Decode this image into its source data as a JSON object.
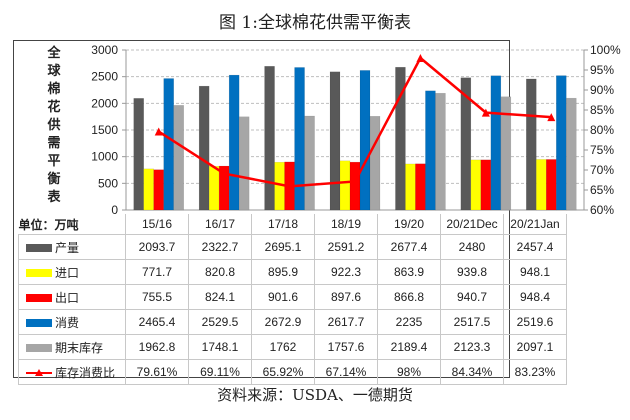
{
  "page": {
    "title": "图 1:全球棉花供需平衡表",
    "source": "资料来源：USDA、一德期货",
    "vertical_title": [
      "全",
      "球",
      "棉",
      "花",
      "供",
      "需",
      "平",
      "衡",
      "表"
    ],
    "unit_label": "单位：万吨"
  },
  "colors": {
    "production": "#595959",
    "imports": "#ffff00",
    "exports": "#ff0000",
    "consumption": "#0070c0",
    "ending_stocks": "#a6a6a6",
    "stock_ratio": "#ff0000"
  },
  "chart_data": {
    "type": "bar",
    "title": "图 1:全球棉花供需平衡表",
    "categories": [
      "15/16",
      "16/17",
      "17/18",
      "18/19",
      "19/20",
      "20/21Dec",
      "20/21Jan"
    ],
    "series": [
      {
        "name": "产量",
        "key": "production",
        "axis": "left",
        "type": "bar",
        "values": [
          2093.7,
          2322.7,
          2695.1,
          2591.2,
          2677.4,
          2480,
          2457.4
        ],
        "labels": [
          "2093.7",
          "2322.7",
          "2695.1",
          "2591.2",
          "2677.4",
          "2480",
          "2457.4"
        ]
      },
      {
        "name": "进口",
        "key": "imports",
        "axis": "left",
        "type": "bar",
        "values": [
          771.7,
          820.8,
          895.9,
          922.3,
          863.9,
          939.8,
          948.1
        ],
        "labels": [
          "771.7",
          "820.8",
          "895.9",
          "922.3",
          "863.9",
          "939.8",
          "948.1"
        ]
      },
      {
        "name": "出口",
        "key": "exports",
        "axis": "left",
        "type": "bar",
        "values": [
          755.5,
          824.1,
          901.6,
          897.6,
          866.8,
          940.7,
          948.4
        ],
        "labels": [
          "755.5",
          "824.1",
          "901.6",
          "897.6",
          "866.8",
          "940.7",
          "948.4"
        ]
      },
      {
        "name": "消费",
        "key": "consumption",
        "axis": "left",
        "type": "bar",
        "values": [
          2465.4,
          2529.5,
          2672.9,
          2617.7,
          2235,
          2517.5,
          2519.6
        ],
        "labels": [
          "2465.4",
          "2529.5",
          "2672.9",
          "2617.7",
          "2235",
          "2517.5",
          "2519.6"
        ]
      },
      {
        "name": "期末库存",
        "key": "ending_stocks",
        "axis": "left",
        "type": "bar",
        "values": [
          1962.8,
          1748.1,
          1762,
          1757.6,
          2189.4,
          2123.3,
          2097.1
        ],
        "labels": [
          "1962.8",
          "1748.1",
          "1762",
          "1757.6",
          "2189.4",
          "2123.3",
          "2097.1"
        ]
      },
      {
        "name": "库存消费比",
        "key": "stock_ratio",
        "axis": "right",
        "type": "line",
        "values": [
          79.61,
          69.11,
          65.92,
          67.14,
          98,
          84.34,
          83.23
        ],
        "labels": [
          "79.61%",
          "69.11%",
          "65.92%",
          "67.14%",
          "98%",
          "84.34%",
          "83.23%"
        ]
      }
    ],
    "y_left": {
      "ylim": [
        0,
        3000
      ],
      "ticks": [
        "0",
        "500",
        "1000",
        "1500",
        "2000",
        "2500",
        "3000"
      ]
    },
    "y_right": {
      "ylim": [
        60,
        100
      ],
      "ticks": [
        "60%",
        "65%",
        "70%",
        "75%",
        "80%",
        "85%",
        "90%",
        "95%",
        "100%"
      ]
    },
    "grid": true,
    "legend": "data-table-below"
  }
}
